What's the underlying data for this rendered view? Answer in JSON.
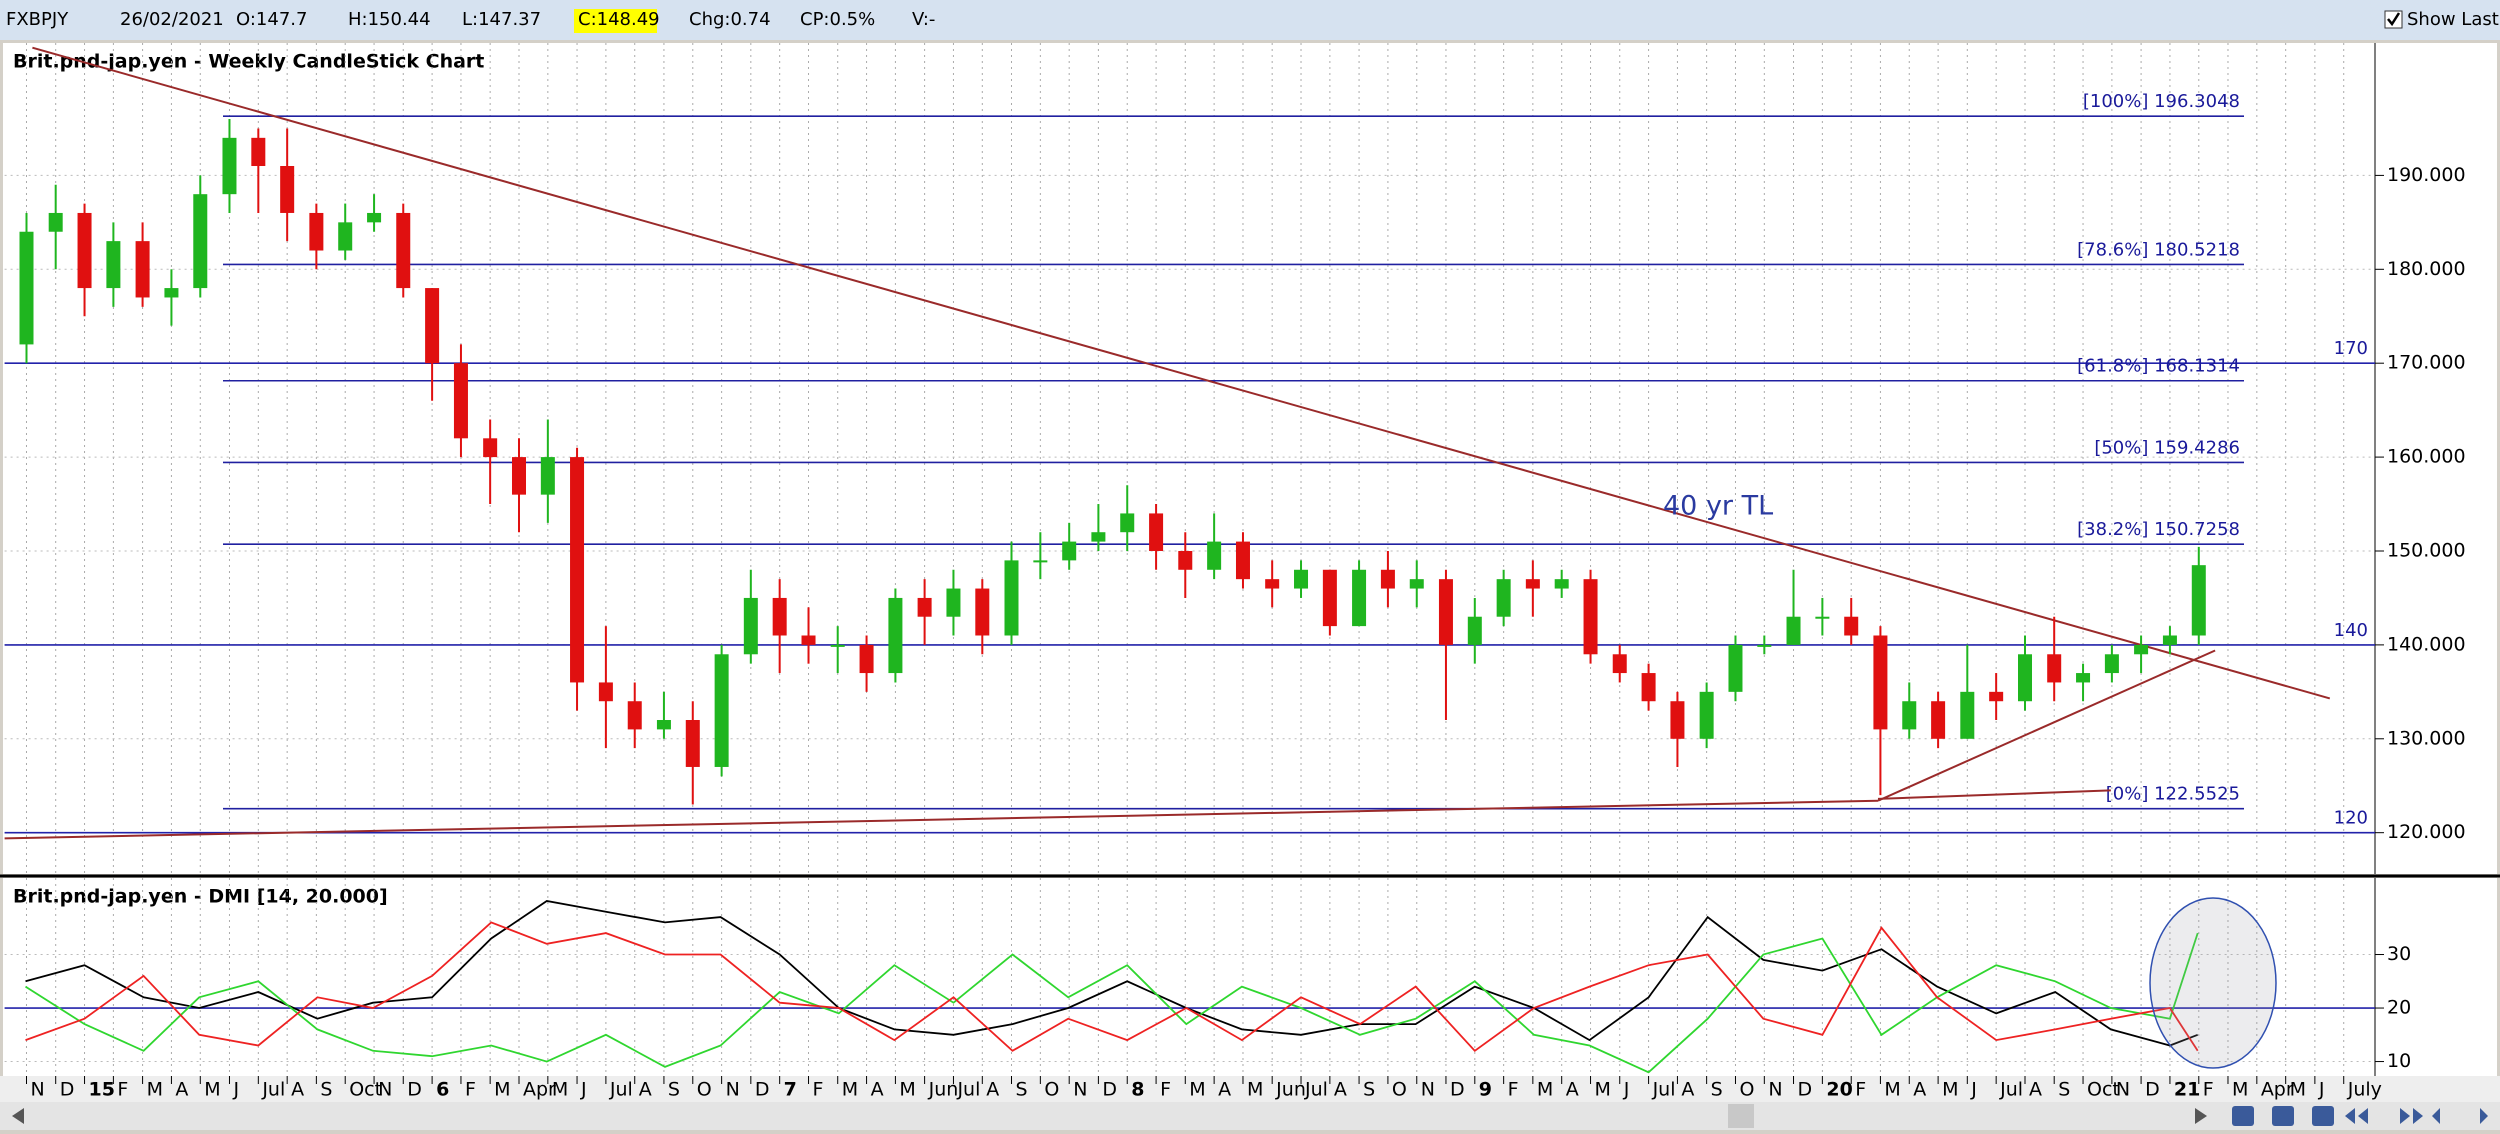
{
  "header": {
    "symbol": "FXBPJY",
    "date": "26/02/2021",
    "open": "O:147.7",
    "high": "H:150.44",
    "low": "L:147.37",
    "close": "C:148.49",
    "change": "Chg:0.74",
    "change_pct": "CP:0.5%",
    "volume": "V:-",
    "show_last": "Show Last"
  },
  "chart_data": [
    {
      "type": "candlestick",
      "title": "Brit.pnd-jap.yen - Weekly CandleStick Chart",
      "annotation": "40 yr TL",
      "up_color": "#1fb51f",
      "down_color": "#e01010",
      "xlim": [
        2014.77,
        2021.59
      ],
      "ylim": [
        115.6,
        204.1
      ],
      "grid": true,
      "yticks": [
        {
          "value": 120,
          "label": "120.000"
        },
        {
          "value": 130,
          "label": "130.000"
        },
        {
          "value": 140,
          "label": "140.000"
        },
        {
          "value": 150,
          "label": "150.000"
        },
        {
          "value": 160,
          "label": "160.000"
        },
        {
          "value": 170,
          "label": "170.000"
        },
        {
          "value": 180,
          "label": "180.000"
        },
        {
          "value": 190,
          "label": "190.000"
        }
      ],
      "levels": [
        {
          "value": 196.3048,
          "label": "[100%] 196.3048"
        },
        {
          "value": 180.5218,
          "label": "[78.6%] 180.5218"
        },
        {
          "value": 168.1314,
          "label": "[61.8%] 168.1314"
        },
        {
          "value": 159.4286,
          "label": "[50%] 159.4286"
        },
        {
          "value": 150.7258,
          "label": "[38.2%] 150.7258"
        },
        {
          "value": 122.5525,
          "label": "[0%] 122.5525"
        }
      ],
      "hlines": [
        170,
        140,
        120
      ],
      "trendlines": [
        {
          "x1": 2014.85,
          "y1": 203.6,
          "x2": 2021.46,
          "y2": 134.3
        },
        {
          "x1": 2014.77,
          "y1": 119.4,
          "x2": 2020.16,
          "y2": 123.4
        },
        {
          "x1": 2020.16,
          "y1": 123.6,
          "x2": 2020.83,
          "y2": 124.5
        },
        {
          "x1": 2020.16,
          "y1": 123.4,
          "x2": 2021.13,
          "y2": 139.4
        }
      ],
      "x": [
        2014.833,
        2014.917,
        2015,
        2015.083,
        2015.167,
        2015.25,
        2015.333,
        2015.417,
        2015.5,
        2015.583,
        2015.667,
        2015.75,
        2015.833,
        2015.917,
        2016,
        2016.083,
        2016.167,
        2016.25,
        2016.333,
        2016.417,
        2016.5,
        2016.583,
        2016.667,
        2016.75,
        2016.833,
        2016.917,
        2017,
        2017.083,
        2017.167,
        2017.25,
        2017.333,
        2017.417,
        2017.5,
        2017.583,
        2017.667,
        2017.75,
        2017.833,
        2017.917,
        2018,
        2018.083,
        2018.167,
        2018.25,
        2018.333,
        2018.417,
        2018.5,
        2018.583,
        2018.667,
        2018.75,
        2018.833,
        2018.917,
        2019,
        2019.083,
        2019.167,
        2019.25,
        2019.333,
        2019.417,
        2019.5,
        2019.583,
        2019.667,
        2019.75,
        2019.833,
        2019.917,
        2020,
        2020.083,
        2020.167,
        2020.25,
        2020.333,
        2020.417,
        2020.5,
        2020.583,
        2020.667,
        2020.75,
        2020.833,
        2020.917,
        2021,
        2021.083
      ],
      "open": [
        172,
        184,
        186,
        178,
        183,
        177,
        178,
        188,
        194,
        191,
        186,
        182,
        185,
        186,
        178,
        170,
        162,
        160,
        156,
        160,
        136,
        134,
        131,
        132,
        127,
        139,
        145,
        141,
        140,
        140,
        137,
        145,
        143,
        146,
        141,
        149,
        149,
        151,
        152,
        154,
        150,
        148,
        151,
        147,
        146,
        148,
        142,
        148,
        146,
        147,
        140,
        143,
        147,
        146,
        147,
        139,
        137,
        134,
        130,
        135,
        140,
        140,
        143,
        143,
        141,
        131,
        134,
        130,
        135,
        134,
        139,
        136,
        137,
        139,
        140,
        141
      ],
      "high": [
        186,
        189,
        187,
        185,
        185,
        180,
        190,
        196,
        195,
        195,
        187,
        187,
        188,
        187,
        178,
        172,
        164,
        162,
        164,
        161,
        142,
        136,
        135,
        134,
        140,
        148,
        147,
        144,
        142,
        141,
        146,
        147,
        148,
        147,
        151,
        152,
        153,
        155,
        157,
        155,
        152,
        154,
        152,
        149,
        149,
        148,
        149,
        150,
        149,
        148,
        145,
        148,
        149,
        148,
        148,
        140,
        138,
        135,
        136,
        141,
        141,
        148,
        145,
        145,
        142,
        136,
        135,
        140,
        137,
        141,
        143,
        138,
        140,
        141,
        142,
        150.44
      ],
      "low": [
        170,
        180,
        175,
        176,
        176,
        174,
        177,
        186,
        186,
        183,
        180,
        181,
        184,
        177,
        166,
        160,
        155,
        152,
        153,
        133,
        129,
        129,
        130,
        123,
        126,
        138,
        137,
        138,
        137,
        135,
        136,
        140,
        141,
        139,
        140,
        147,
        148,
        150,
        150,
        148,
        145,
        147,
        146,
        144,
        145,
        141,
        142,
        144,
        144,
        132,
        138,
        142,
        143,
        145,
        138,
        136,
        133,
        127,
        129,
        134,
        139,
        140,
        141,
        140,
        124,
        130,
        129,
        130,
        132,
        133,
        134,
        134,
        136,
        137,
        139,
        140
      ],
      "close": [
        184,
        186,
        178,
        183,
        177,
        178,
        188,
        194,
        191,
        186,
        182,
        185,
        186,
        178,
        170,
        162,
        160,
        156,
        160,
        136,
        134,
        131,
        132,
        127,
        139,
        145,
        141,
        140,
        140,
        137,
        145,
        143,
        146,
        141,
        149,
        149,
        151,
        152,
        154,
        150,
        148,
        151,
        147,
        146,
        148,
        142,
        148,
        146,
        147,
        140,
        143,
        147,
        146,
        147,
        139,
        137,
        134,
        130,
        135,
        140,
        140,
        143,
        143,
        141,
        131,
        134,
        130,
        135,
        134,
        139,
        136,
        137,
        139,
        140,
        141,
        148.49
      ]
    },
    {
      "type": "line",
      "title": "Brit.pnd-jap.yen - DMI [14, 20.000]",
      "xlim": [
        2014.77,
        2021.59
      ],
      "ylim": [
        7.3,
        44.3
      ],
      "yticks": [
        10,
        20,
        30
      ],
      "hlines": [
        20
      ],
      "grid": true,
      "xticks": [
        {
          "value": 2014.833,
          "label": "N"
        },
        {
          "value": 2014.917,
          "label": "D"
        },
        {
          "value": 2015,
          "label": "15"
        },
        {
          "value": 2015.083,
          "label": "F"
        },
        {
          "value": 2015.167,
          "label": "M"
        },
        {
          "value": 2015.25,
          "label": "A"
        },
        {
          "value": 2015.333,
          "label": "M"
        },
        {
          "value": 2015.417,
          "label": "J"
        },
        {
          "value": 2015.5,
          "label": "Jul"
        },
        {
          "value": 2015.583,
          "label": "A"
        },
        {
          "value": 2015.667,
          "label": "S"
        },
        {
          "value": 2015.75,
          "label": "Oct"
        },
        {
          "value": 2015.833,
          "label": "N"
        },
        {
          "value": 2015.917,
          "label": "D"
        },
        {
          "value": 2016,
          "label": "6"
        },
        {
          "value": 2016.083,
          "label": "F"
        },
        {
          "value": 2016.167,
          "label": "M"
        },
        {
          "value": 2016.25,
          "label": "Apr"
        },
        {
          "value": 2016.333,
          "label": "M"
        },
        {
          "value": 2016.417,
          "label": "J"
        },
        {
          "value": 2016.5,
          "label": "Jul"
        },
        {
          "value": 2016.583,
          "label": "A"
        },
        {
          "value": 2016.667,
          "label": "S"
        },
        {
          "value": 2016.75,
          "label": "O"
        },
        {
          "value": 2016.833,
          "label": "N"
        },
        {
          "value": 2016.917,
          "label": "D"
        },
        {
          "value": 2017,
          "label": "7"
        },
        {
          "value": 2017.083,
          "label": "F"
        },
        {
          "value": 2017.167,
          "label": "M"
        },
        {
          "value": 2017.25,
          "label": "A"
        },
        {
          "value": 2017.333,
          "label": "M"
        },
        {
          "value": 2017.417,
          "label": "Jun"
        },
        {
          "value": 2017.5,
          "label": "Jul"
        },
        {
          "value": 2017.583,
          "label": "A"
        },
        {
          "value": 2017.667,
          "label": "S"
        },
        {
          "value": 2017.75,
          "label": "O"
        },
        {
          "value": 2017.833,
          "label": "N"
        },
        {
          "value": 2017.917,
          "label": "D"
        },
        {
          "value": 2018,
          "label": "8"
        },
        {
          "value": 2018.083,
          "label": "F"
        },
        {
          "value": 2018.167,
          "label": "M"
        },
        {
          "value": 2018.25,
          "label": "A"
        },
        {
          "value": 2018.333,
          "label": "M"
        },
        {
          "value": 2018.417,
          "label": "Jun"
        },
        {
          "value": 2018.5,
          "label": "Jul"
        },
        {
          "value": 2018.583,
          "label": "A"
        },
        {
          "value": 2018.667,
          "label": "S"
        },
        {
          "value": 2018.75,
          "label": "O"
        },
        {
          "value": 2018.833,
          "label": "N"
        },
        {
          "value": 2018.917,
          "label": "D"
        },
        {
          "value": 2019,
          "label": "9"
        },
        {
          "value": 2019.083,
          "label": "F"
        },
        {
          "value": 2019.167,
          "label": "M"
        },
        {
          "value": 2019.25,
          "label": "A"
        },
        {
          "value": 2019.333,
          "label": "M"
        },
        {
          "value": 2019.417,
          "label": "J"
        },
        {
          "value": 2019.5,
          "label": "Jul"
        },
        {
          "value": 2019.583,
          "label": "A"
        },
        {
          "value": 2019.667,
          "label": "S"
        },
        {
          "value": 2019.75,
          "label": "O"
        },
        {
          "value": 2019.833,
          "label": "N"
        },
        {
          "value": 2019.917,
          "label": "D"
        },
        {
          "value": 2020,
          "label": "20"
        },
        {
          "value": 2020.083,
          "label": "F"
        },
        {
          "value": 2020.167,
          "label": "M"
        },
        {
          "value": 2020.25,
          "label": "A"
        },
        {
          "value": 2020.333,
          "label": "M"
        },
        {
          "value": 2020.417,
          "label": "J"
        },
        {
          "value": 2020.5,
          "label": "Jul"
        },
        {
          "value": 2020.583,
          "label": "A"
        },
        {
          "value": 2020.667,
          "label": "S"
        },
        {
          "value": 2020.75,
          "label": "Oct"
        },
        {
          "value": 2020.833,
          "label": "N"
        },
        {
          "value": 2020.917,
          "label": "D"
        },
        {
          "value": 2021,
          "label": "21"
        },
        {
          "value": 2021.083,
          "label": "F"
        },
        {
          "value": 2021.167,
          "label": "M"
        },
        {
          "value": 2021.25,
          "label": "Apr"
        },
        {
          "value": 2021.333,
          "label": "M"
        },
        {
          "value": 2021.417,
          "label": "J"
        },
        {
          "value": 2021.5,
          "label": "July"
        }
      ],
      "x": [
        2014.83,
        2015,
        2015.17,
        2015.33,
        2015.5,
        2015.67,
        2015.83,
        2016,
        2016.17,
        2016.33,
        2016.5,
        2016.67,
        2016.83,
        2017,
        2017.17,
        2017.33,
        2017.5,
        2017.67,
        2017.83,
        2018,
        2018.17,
        2018.33,
        2018.5,
        2018.67,
        2018.83,
        2019,
        2019.17,
        2019.33,
        2019.5,
        2019.67,
        2019.83,
        2020,
        2020.17,
        2020.33,
        2020.5,
        2020.67,
        2020.83,
        2021,
        2021.08
      ],
      "series": [
        {
          "color": "#000000",
          "values": [
            25,
            28,
            22,
            20,
            23,
            18,
            21,
            22,
            33,
            40,
            38,
            36,
            37,
            30,
            20,
            16,
            15,
            17,
            20,
            25,
            20,
            16,
            15,
            17,
            17,
            24,
            20,
            14,
            22,
            37,
            29,
            27,
            31,
            24,
            19,
            23,
            16,
            13,
            15
          ]
        },
        {
          "color": "#2fd62f",
          "values": [
            24,
            17,
            12,
            22,
            25,
            16,
            12,
            11,
            13,
            10,
            15,
            9,
            13,
            23,
            19,
            28,
            21,
            30,
            22,
            28,
            17,
            24,
            20,
            15,
            18,
            25,
            15,
            13,
            8,
            18,
            30,
            33,
            15,
            22,
            28,
            25,
            20,
            18,
            34
          ]
        },
        {
          "color": "#ee2222",
          "values": [
            14,
            18,
            26,
            15,
            13,
            22,
            20,
            26,
            36,
            32,
            34,
            30,
            30,
            21,
            20,
            14,
            22,
            12,
            18,
            14,
            20,
            14,
            22,
            17,
            24,
            12,
            20,
            24,
            28,
            30,
            18,
            15,
            35,
            22,
            14,
            16,
            18,
            20,
            12
          ]
        }
      ]
    }
  ]
}
